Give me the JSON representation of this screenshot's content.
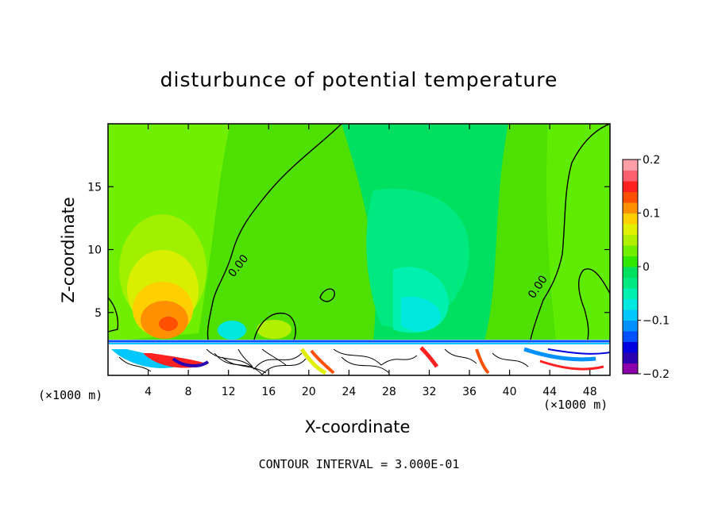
{
  "chart_data": {
    "type": "heatmap",
    "title": "disturbunce of potential temperature",
    "xlabel": "X-coordinate",
    "ylabel": "Z-coordinate",
    "x_unit_label": "(×1000 m)",
    "x_ticks": [
      4,
      8,
      12,
      16,
      20,
      24,
      28,
      32,
      36,
      40,
      44,
      48
    ],
    "y_ticks": [
      5,
      10,
      15
    ],
    "xlim": [
      0,
      50
    ],
    "ylim": [
      0,
      20
    ],
    "contour_interval": "CONTOUR INTERVAL = 3.000E-01",
    "contour_labels": [
      "0.00",
      "0.00"
    ],
    "colorbar": {
      "range": [
        -0.2,
        0.2
      ],
      "tick_labels": [
        "0.2",
        "0.1",
        "0",
        "−0.1",
        "−0.2"
      ],
      "tick_values": [
        0.2,
        0.1,
        0,
        -0.1,
        -0.2
      ]
    },
    "features": [
      {
        "label": "warm anomaly",
        "x": 6,
        "z": 4,
        "value": 0.14
      },
      {
        "label": "cool anomaly",
        "x": 31,
        "z": 5,
        "value": -0.05
      }
    ]
  },
  "colors": {
    "colorbar_stops": [
      "#8b00a8",
      "#2a00b0",
      "#0000e0",
      "#0050ff",
      "#0090ff",
      "#00c8ff",
      "#00e8e0",
      "#00f0b0",
      "#00e880",
      "#00e060",
      "#30e800",
      "#70f000",
      "#b0f000",
      "#e0f000",
      "#ffd000",
      "#ff9000",
      "#ff5000",
      "#ff2020",
      "#ff6070",
      "#ffa0a8"
    ]
  }
}
